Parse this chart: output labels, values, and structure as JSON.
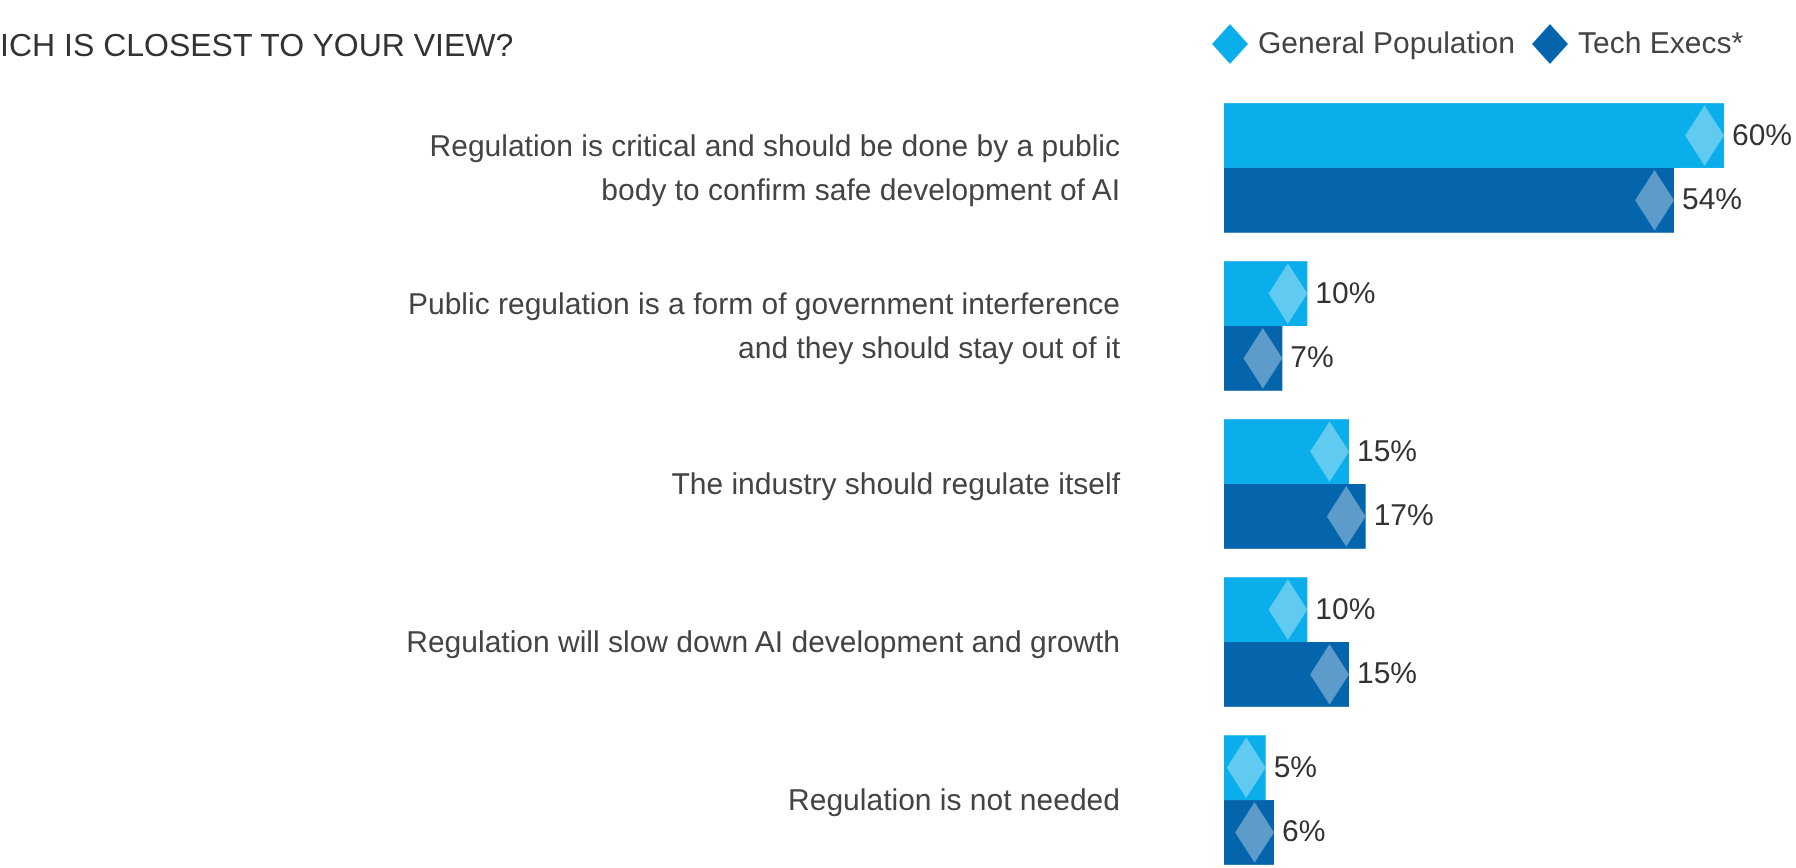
{
  "chart_data": {
    "type": "bar",
    "orientation": "horizontal",
    "title": "ICH IS CLOSEST TO YOUR VIEW?",
    "categories": [
      "Regulation is critical and should be done by a public body to confirm safe development of AI",
      "Public regulation is a form of government interference and they should stay out of it",
      "The industry should regulate itself",
      "Regulation will slow down AI development and growth",
      "Regulation is not needed"
    ],
    "series": [
      {
        "name": "General Population",
        "color": "#0aaeea",
        "values": [
          60,
          10,
          15,
          10,
          5
        ],
        "value_labels": [
          "60%",
          "10%",
          "15%",
          "10%",
          "5%"
        ]
      },
      {
        "name": "Tech Execs*",
        "color": "#0465ad",
        "values": [
          54,
          7,
          17,
          15,
          6
        ],
        "value_labels": [
          "54%",
          "7%",
          "17%",
          "15%",
          "6%"
        ]
      }
    ],
    "legend": "top right"
  }
}
